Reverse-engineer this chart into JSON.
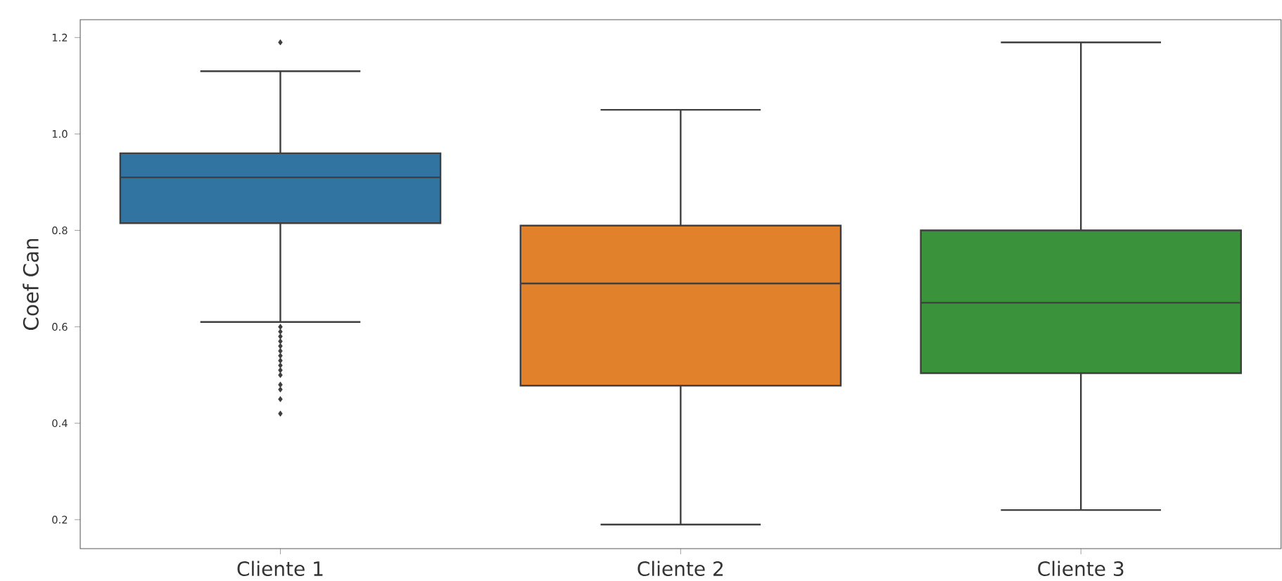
{
  "chart_data": {
    "type": "box",
    "ylabel": "Coef Can",
    "categories": [
      "Cliente 1",
      "Cliente 2",
      "Cliente 3"
    ],
    "colors": [
      "#3274a1",
      "#e1812c",
      "#3a923a"
    ],
    "boxes": [
      {
        "low": 0.61,
        "q1": 0.815,
        "median": 0.91,
        "q3": 0.96,
        "high": 1.13,
        "outliers": [
          1.19,
          0.6,
          0.59,
          0.58,
          0.57,
          0.56,
          0.55,
          0.54,
          0.53,
          0.52,
          0.51,
          0.5,
          0.48,
          0.47,
          0.45,
          0.42
        ]
      },
      {
        "low": 0.19,
        "q1": 0.478,
        "median": 0.69,
        "q3": 0.81,
        "high": 1.05
      },
      {
        "low": 0.22,
        "q1": 0.504,
        "median": 0.65,
        "q3": 0.8,
        "high": 1.19
      }
    ],
    "ylim": [
      0.14,
      1.237
    ],
    "yticks": [
      {
        "value": 0.2,
        "label": "0.2"
      },
      {
        "value": 0.4,
        "label": "0.4"
      },
      {
        "value": 0.6,
        "label": "0.6"
      },
      {
        "value": 0.8,
        "label": "0.8"
      },
      {
        "value": 1.0,
        "label": "1.0"
      },
      {
        "value": 1.2,
        "label": "1.2"
      }
    ]
  }
}
